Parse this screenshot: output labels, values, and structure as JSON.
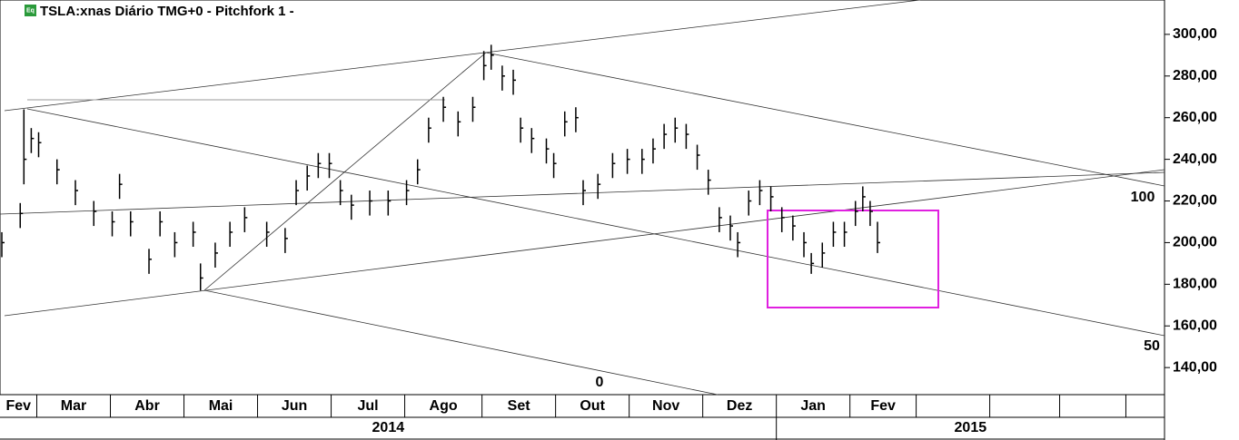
{
  "chart_data": {
    "type": "ohlc",
    "title": "TSLA:xnas Diário TMG+0  -  Pitchfork 1  -",
    "icon_label": "Eq",
    "x": [
      0,
      5,
      6,
      8,
      10,
      15,
      20,
      25,
      30,
      32,
      35,
      40,
      43,
      47,
      52,
      54,
      58,
      62,
      66,
      72,
      77,
      80,
      83,
      86,
      89,
      92,
      95,
      100,
      105,
      110,
      113,
      116,
      120,
      124,
      128,
      131,
      133,
      136,
      139,
      141,
      144,
      148,
      150,
      153,
      156,
      158,
      162,
      166,
      170,
      174,
      177,
      180,
      183,
      186,
      189,
      192,
      195,
      198,
      200,
      203,
      206,
      209,
      212,
      215,
      218,
      220,
      223,
      226,
      229,
      232,
      234,
      236,
      238
    ],
    "high": [
      205,
      219,
      264,
      255,
      253,
      240,
      230,
      220,
      215,
      233,
      215,
      197,
      215,
      205,
      210,
      190,
      200,
      210,
      217,
      210,
      207,
      230,
      237,
      243,
      243,
      230,
      223,
      225,
      225,
      230,
      240,
      260,
      270,
      263,
      270,
      292,
      295,
      285,
      283,
      260,
      255,
      250,
      243,
      263,
      265,
      230,
      233,
      243,
      245,
      245,
      250,
      257,
      260,
      257,
      247,
      235,
      217,
      213,
      205,
      225,
      230,
      227,
      217,
      213,
      205,
      195,
      200,
      210,
      210,
      220,
      227,
      220,
      210
    ],
    "low": [
      193,
      207,
      228,
      243,
      241,
      228,
      218,
      208,
      203,
      221,
      203,
      185,
      203,
      193,
      198,
      177,
      188,
      198,
      205,
      198,
      195,
      218,
      225,
      231,
      231,
      218,
      211,
      213,
      213,
      218,
      228,
      248,
      258,
      251,
      258,
      278,
      283,
      273,
      271,
      248,
      243,
      238,
      231,
      251,
      253,
      218,
      221,
      231,
      233,
      233,
      238,
      245,
      248,
      245,
      235,
      223,
      205,
      201,
      193,
      213,
      218,
      215,
      205,
      201,
      193,
      185,
      188,
      198,
      198,
      208,
      215,
      208,
      195
    ],
    "close": [
      200,
      214,
      240,
      250,
      248,
      235,
      225,
      215,
      210,
      228,
      210,
      192,
      210,
      200,
      205,
      183,
      195,
      205,
      212,
      205,
      202,
      225,
      232,
      238,
      238,
      225,
      218,
      220,
      220,
      225,
      235,
      255,
      265,
      258,
      265,
      285,
      290,
      280,
      278,
      255,
      250,
      245,
      238,
      258,
      260,
      225,
      228,
      238,
      240,
      240,
      245,
      252,
      255,
      252,
      242,
      230,
      212,
      208,
      200,
      220,
      225,
      222,
      212,
      208,
      200,
      190,
      195,
      205,
      205,
      215,
      222,
      215,
      200
    ],
    "ylim": [
      127,
      316.5
    ],
    "yticks": [
      {
        "value": 140,
        "label": "140,00"
      },
      {
        "value": 160,
        "label": "160,00"
      },
      {
        "value": 180,
        "label": "180,00"
      },
      {
        "value": 200,
        "label": "200,00"
      },
      {
        "value": 220,
        "label": "220,00"
      },
      {
        "value": 240,
        "label": "240,00"
      },
      {
        "value": 260,
        "label": "260,00"
      },
      {
        "value": 280,
        "label": "280,00"
      },
      {
        "value": 300,
        "label": "300,00"
      }
    ],
    "xlim": [
      0,
      316.5
    ],
    "xticks": [
      {
        "value": 0,
        "label": "Fev"
      },
      {
        "value": 10,
        "label": "Mar"
      },
      {
        "value": 30,
        "label": "Abr"
      },
      {
        "value": 50,
        "label": "Mai"
      },
      {
        "value": 70,
        "label": "Jun"
      },
      {
        "value": 90,
        "label": "Jul"
      },
      {
        "value": 110,
        "label": "Ago"
      },
      {
        "value": 131,
        "label": "Set"
      },
      {
        "value": 151,
        "label": "Out"
      },
      {
        "value": 171,
        "label": "Nov"
      },
      {
        "value": 191,
        "label": "Dez"
      },
      {
        "value": 211,
        "label": "Jan"
      },
      {
        "value": 231,
        "label": "Fev"
      },
      249,
      269,
      288,
      306
    ],
    "years": [
      {
        "value": 0,
        "label": "2014"
      },
      {
        "value": 211,
        "label": "2015"
      }
    ],
    "annotations": [
      "100",
      "50",
      "0"
    ],
    "color": "#000000"
  }
}
